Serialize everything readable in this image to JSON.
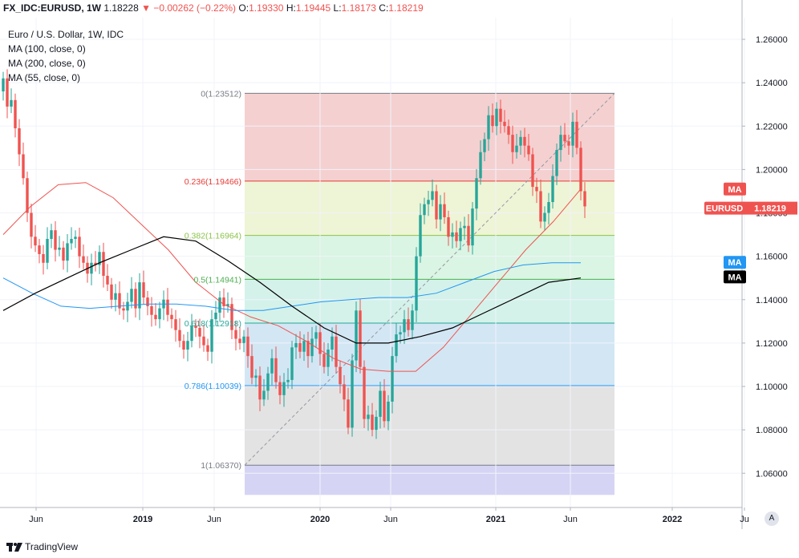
{
  "topbar": {
    "symbol": "FX_IDC:EURUSD, 1W",
    "last": "1.18228",
    "change": "▼ −0.00262 (−0.22%)",
    "o_label": "O:",
    "o_value": "1.19330",
    "h_label": "H:",
    "h_value": "1.19445",
    "l_label": "L:",
    "l_value": "1.18173",
    "c_label": "C:",
    "c_value": "1.18219"
  },
  "legend": {
    "title": "Euro / U.S. Dollar, 1W, IDC",
    "ma100": "MA (100, close, 0)",
    "ma200": "MA (200, close, 0)",
    "ma55": "MA (55, close, 0)"
  },
  "footer": {
    "brand": "TradingView",
    "auto_button": "A"
  },
  "colors": {
    "up": "#26a69a",
    "down": "#ef5350",
    "ma55": "#ef5350",
    "ma100": "#2196f3",
    "ma200": "#000000"
  },
  "chart_data": {
    "type": "candlestick",
    "ylim": [
      1.05,
      1.27
    ],
    "y_ticks": [
      "1.26000",
      "1.24000",
      "1.22000",
      "1.20000",
      "1.18000",
      "1.16000",
      "1.14000",
      "1.12000",
      "1.10000",
      "1.08000",
      "1.06000"
    ],
    "x_ticks": [
      "Jun",
      "2019",
      "Jun",
      "2020",
      "Jun",
      "2021",
      "Jun",
      "2022",
      "Ju"
    ],
    "fib": {
      "levels": [
        {
          "label": "0(1.23512)",
          "value": 1.23512,
          "color": "#787b86",
          "fill": "#f5d0d0"
        },
        {
          "label": "0.236(1.19466)",
          "value": 1.19466,
          "color": "#e53935",
          "fill": "#eef4d6"
        },
        {
          "label": "0.382(1.16964)",
          "value": 1.16964,
          "color": "#8bc34a",
          "fill": "#daf5e3"
        },
        {
          "label": "0.5(1.14941)",
          "value": 1.14941,
          "color": "#4caf50",
          "fill": "#d4f2ea"
        },
        {
          "label": "0.618(1.12918)",
          "value": 1.12918,
          "color": "#26a69a",
          "fill": "#d3e6f4"
        },
        {
          "label": "0.786(1.10039)",
          "value": 1.10039,
          "color": "#2196f3",
          "fill": "#e3e3e3"
        },
        {
          "label": "1(1.06370)",
          "value": 1.0637,
          "color": "#787b86",
          "fill": "#d6d4f4"
        }
      ],
      "bottom_value": 1.05
    },
    "tags": {
      "ma55_label": "MA",
      "ma55_value": 1.191,
      "eurusd_label": "EURUSD",
      "eurusd_value_text": "1.18219",
      "eurusd_value": 1.18219,
      "ma100_label": "MA",
      "ma100_value": 1.1572,
      "ma200_label": "MA",
      "ma200_value": 1.1505
    },
    "series": [
      {
        "name": "MA (55, close, 0)",
        "values": [
          1.17,
          1.183,
          1.193,
          1.194,
          1.187,
          1.175,
          1.163,
          1.148,
          1.138,
          1.132,
          1.128,
          1.121,
          1.113,
          1.108,
          1.107,
          1.107,
          1.118,
          1.133,
          1.148,
          1.163,
          1.176,
          1.191
        ]
      },
      {
        "name": "MA (100, close, 0)",
        "values": [
          1.15,
          1.143,
          1.137,
          1.136,
          1.137,
          1.138,
          1.138,
          1.137,
          1.135,
          1.135,
          1.137,
          1.139,
          1.14,
          1.141,
          1.141,
          1.143,
          1.148,
          1.153,
          1.156,
          1.157,
          1.157
        ]
      },
      {
        "name": "MA (200, close, 0)",
        "values": [
          1.135,
          1.143,
          1.15,
          1.157,
          1.163,
          1.169,
          1.167,
          1.158,
          1.148,
          1.137,
          1.127,
          1.12,
          1.12,
          1.123,
          1.127,
          1.134,
          1.141,
          1.148,
          1.15
        ]
      }
    ],
    "weekly_closes": [
      1.242,
      1.229,
      1.232,
      1.219,
      1.207,
      1.196,
      1.18,
      1.169,
      1.165,
      1.161,
      1.157,
      1.168,
      1.172,
      1.163,
      1.164,
      1.158,
      1.166,
      1.168,
      1.169,
      1.16,
      1.157,
      1.152,
      1.157,
      1.156,
      1.162,
      1.151,
      1.147,
      1.14,
      1.143,
      1.136,
      1.135,
      1.139,
      1.145,
      1.136,
      1.148,
      1.141,
      1.137,
      1.133,
      1.131,
      1.136,
      1.14,
      1.133,
      1.131,
      1.126,
      1.121,
      1.117,
      1.121,
      1.128,
      1.127,
      1.123,
      1.119,
      1.116,
      1.131,
      1.134,
      1.141,
      1.137,
      1.138,
      1.126,
      1.122,
      1.12,
      1.123,
      1.114,
      1.104,
      1.105,
      1.094,
      1.098,
      1.106,
      1.113,
      1.102,
      1.096,
      1.102,
      1.103,
      1.118,
      1.12,
      1.116,
      1.121,
      1.114,
      1.122,
      1.125,
      1.115,
      1.109,
      1.117,
      1.123,
      1.109,
      1.101,
      1.094,
      1.081,
      1.112,
      1.135,
      1.109,
      1.085,
      1.087,
      1.08,
      1.086,
      1.098,
      1.084,
      1.093,
      1.114,
      1.124,
      1.125,
      1.131,
      1.126,
      1.135,
      1.16,
      1.179,
      1.184,
      1.186,
      1.19,
      1.177,
      1.184,
      1.178,
      1.169,
      1.171,
      1.167,
      1.173,
      1.174,
      1.165,
      1.182,
      1.196,
      1.208,
      1.214,
      1.225,
      1.22,
      1.228,
      1.222,
      1.22,
      1.216,
      1.208,
      1.211,
      1.215,
      1.211,
      1.207,
      1.192,
      1.19,
      1.176,
      1.18,
      1.185,
      1.197,
      1.209,
      1.216,
      1.213,
      1.211,
      1.222,
      1.21,
      1.19,
      1.183
    ]
  }
}
